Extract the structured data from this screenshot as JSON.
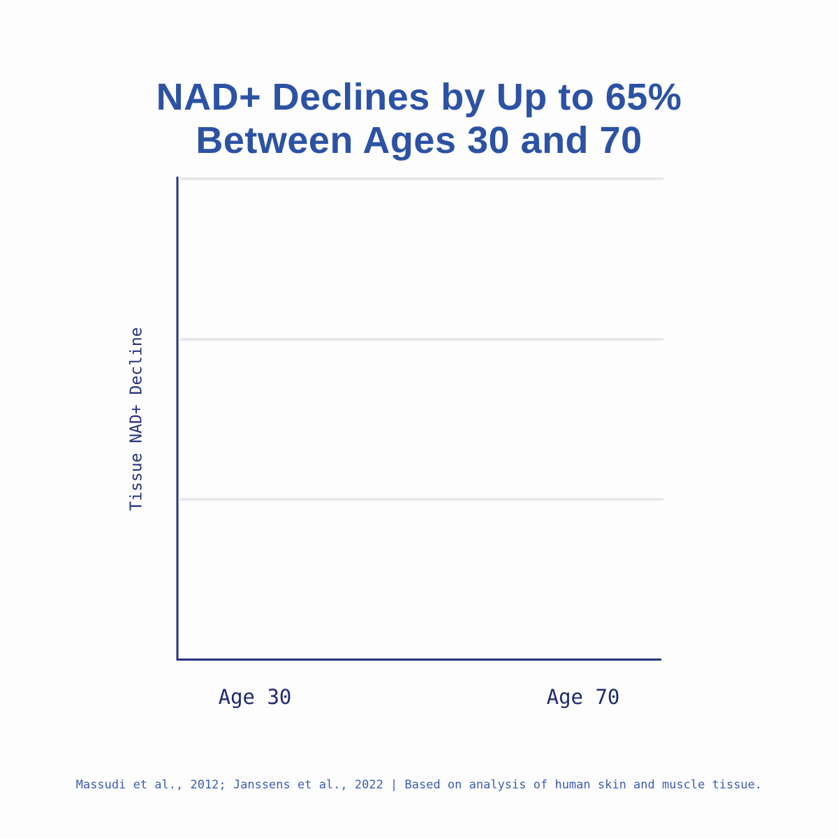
{
  "chart_data": {
    "type": "line",
    "title": "NAD+ Declines by Up to 65% Between Ages 30 and 70",
    "y_label": "Tissue NAD+ Decline",
    "categories": [
      "Age 30",
      "Age 70"
    ],
    "grid": true,
    "footnote": "Massudi et al., 2012; Janssens et al., 2022 | Based on analysis of human skin and muscle tissue."
  }
}
